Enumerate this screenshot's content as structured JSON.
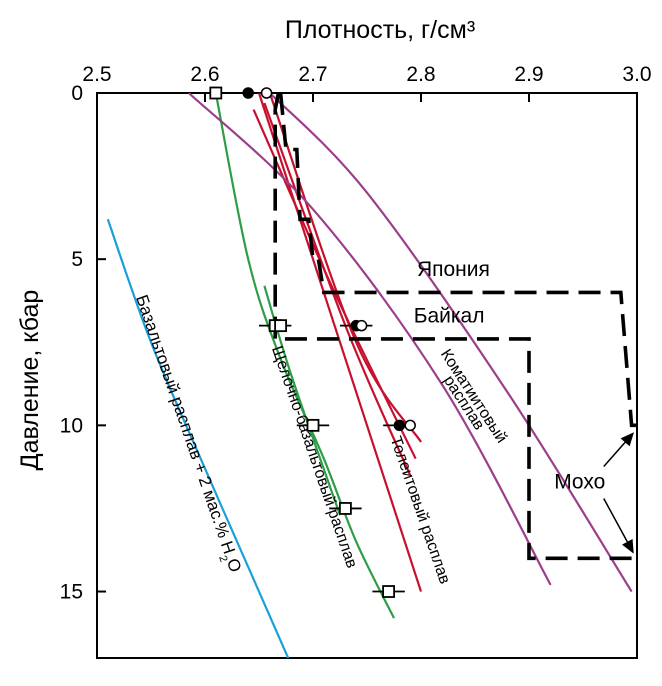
{
  "chart_data": {
    "type": "line",
    "title": "",
    "xlabel": "Плотность, г/см³",
    "ylabel": "Давление, кбар",
    "xlim": [
      2.5,
      3.0
    ],
    "ylim": [
      0,
      17
    ],
    "y_reversed": true,
    "x_axis_position": "top",
    "grid": false,
    "xticks": [
      "2.5",
      "2.6",
      "2.7",
      "2.8",
      "2.9",
      "3.0"
    ],
    "yticks": [
      "0",
      "5",
      "10",
      "15"
    ],
    "colors": {
      "basalt_water": "#1a9fd8",
      "alkali_basalt": "#2e9d47",
      "tholeiite": "#c8102e",
      "komatiite": "#9b3e8c",
      "profile": "#000000"
    },
    "series": [
      {
        "key": "basalt_water",
        "color": "#1a9fd8",
        "x": [
          2.51,
          2.55,
          2.6,
          2.65,
          2.677
        ],
        "y": [
          3.8,
          7.5,
          11.3,
          15.0,
          17.0
        ]
      },
      {
        "key": "alkali_basalt",
        "color": "#2e9d47",
        "x": [
          2.61,
          2.64,
          2.67,
          2.71,
          2.74,
          2.775
        ],
        "y": [
          0,
          5,
          8,
          11,
          13.5,
          15.8
        ]
      },
      {
        "key": "alkali_basalt",
        "color": "#2e9d47",
        "x": [
          2.655,
          2.68,
          2.725
        ],
        "y": [
          5.8,
          8.5,
          12.7
        ]
      },
      {
        "key": "tholeiite",
        "color": "#c8102e",
        "x": [
          2.65,
          2.8
        ],
        "y": [
          0,
          15
        ]
      },
      {
        "key": "tholeiite",
        "color": "#c8102e",
        "x": [
          2.645,
          2.72,
          2.795
        ],
        "y": [
          0.5,
          6.0,
          11.0
        ]
      },
      {
        "key": "tholeiite",
        "color": "#c8102e",
        "x": [
          2.655,
          2.73,
          2.79
        ],
        "y": [
          0.3,
          7.0,
          11.5
        ]
      },
      {
        "key": "tholeiite",
        "color": "#c8102e",
        "x": [
          2.66,
          2.74,
          2.8
        ],
        "y": [
          0,
          7.5,
          10.5
        ]
      },
      {
        "key": "komatiite",
        "color": "#9b3e8c",
        "x": [
          2.585,
          2.7,
          2.82,
          2.92
        ],
        "y": [
          0,
          3.5,
          8.8,
          14.8
        ]
      },
      {
        "key": "komatiite",
        "color": "#9b3e8c",
        "x": [
          2.66,
          2.75,
          2.88,
          2.995
        ],
        "y": [
          0,
          3.0,
          9.0,
          15.0
        ]
      }
    ],
    "profiles": [
      {
        "name": "Япония",
        "x": [
          2.67,
          2.675,
          2.685,
          2.688,
          2.696,
          2.7,
          2.705,
          2.71,
          2.985,
          2.995,
          3.0
        ],
        "y": [
          0,
          1.7,
          1.7,
          3.8,
          3.8,
          5.0,
          5.0,
          6.0,
          6.0,
          10.0,
          10.0
        ]
      },
      {
        "name": "Байкал",
        "x": [
          2.668,
          2.665,
          2.665,
          2.9,
          2.9,
          3.0
        ],
        "y": [
          0,
          0.5,
          7.4,
          7.4,
          14.0,
          14.0
        ]
      }
    ],
    "moho_label": "Мохо",
    "moho_arrow_targets": [
      {
        "x": 3.0,
        "y": 10.0
      },
      {
        "x": 3.0,
        "y": 14.0
      }
    ],
    "points": [
      {
        "x": 2.61,
        "y": 0,
        "marker": "square",
        "err_x": 0
      },
      {
        "x": 2.64,
        "y": 0,
        "marker": "filled-circle",
        "err_x": 0
      },
      {
        "x": 2.657,
        "y": 0,
        "marker": "open-circle",
        "err_x": 0
      },
      {
        "x": 2.665,
        "y": 7.0,
        "marker": "square",
        "err_x": 0.015
      },
      {
        "x": 2.67,
        "y": 7.0,
        "marker": "square",
        "err_x": 0
      },
      {
        "x": 2.7,
        "y": 10.0,
        "marker": "square",
        "err_x": 0.015
      },
      {
        "x": 2.73,
        "y": 12.5,
        "marker": "square",
        "err_x": 0.015
      },
      {
        "x": 2.77,
        "y": 15.0,
        "marker": "square",
        "err_x": 0.015
      },
      {
        "x": 2.74,
        "y": 7.0,
        "marker": "filled-circle",
        "err_x": 0.015
      },
      {
        "x": 2.745,
        "y": 7.0,
        "marker": "open-circle",
        "err_x": 0
      },
      {
        "x": 2.78,
        "y": 10.0,
        "marker": "filled-circle",
        "err_x": 0.015
      },
      {
        "x": 2.79,
        "y": 10.0,
        "marker": "open-circle",
        "err_x": 0
      }
    ],
    "annotations": [
      {
        "key": "japan",
        "text": "Япония",
        "x": 2.83,
        "y": 5.5,
        "rotate": 0,
        "size": 21
      },
      {
        "key": "baikal",
        "text": "Байкал",
        "x": 2.826,
        "y": 6.9,
        "rotate": 0,
        "size": 21
      },
      {
        "key": "basalt_water",
        "html": "Базальтовый расплав + 2 мас.% H<tspan baseline-shift='sub' font-size='11'>2</tspan>O",
        "text": "Базальтовый расплав + 2 мас.% H2O",
        "x": 2.58,
        "y": 10.3,
        "rotate": 71,
        "size": 17
      },
      {
        "key": "alkali_basalt",
        "text": "Щелочно-базальтовый расплав",
        "x": 2.697,
        "y": 11.0,
        "rotate": 71,
        "size": 16
      },
      {
        "key": "tholeiite",
        "text": "Толеитовый расплав",
        "x": 2.795,
        "y": 12.6,
        "rotate": 71,
        "size": 16
      },
      {
        "key": "komatiite_1",
        "text": "Коматиитовый",
        "x": 2.845,
        "y": 9.2,
        "rotate": 57,
        "size": 16
      },
      {
        "key": "komatiite_2",
        "text": "расплав",
        "x": 2.836,
        "y": 9.4,
        "rotate": 57,
        "size": 16
      }
    ]
  }
}
